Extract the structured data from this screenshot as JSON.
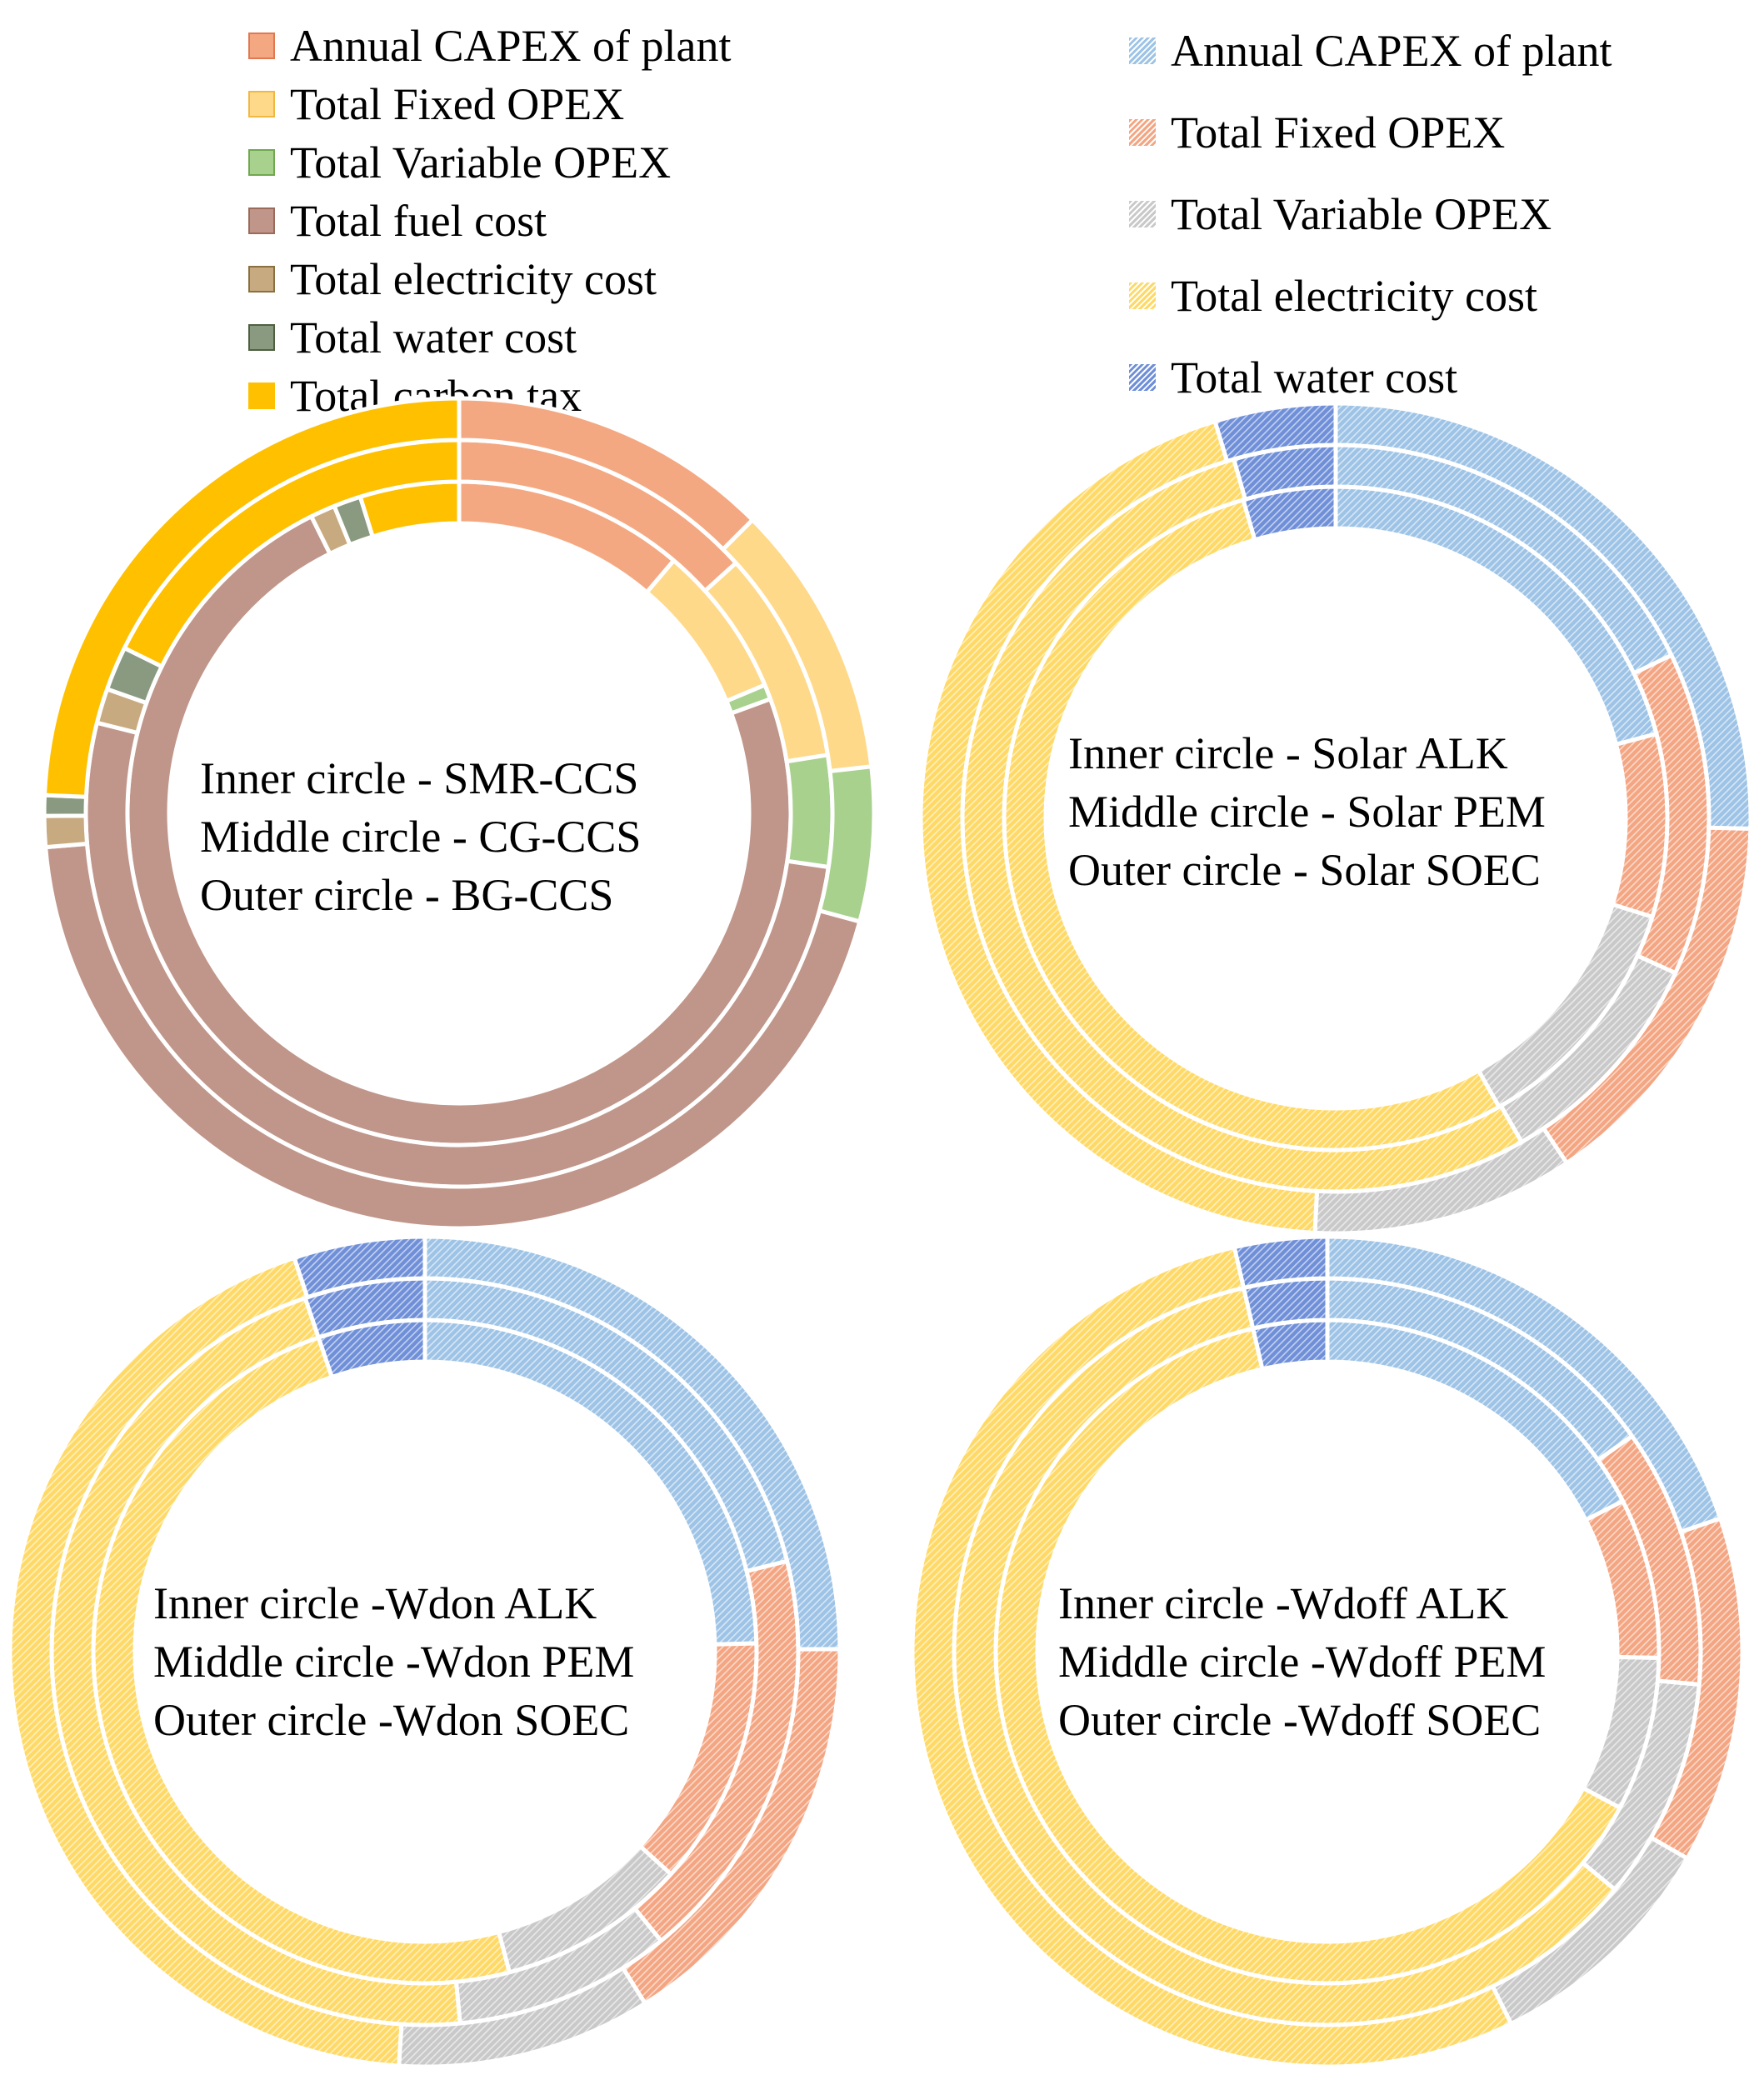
{
  "legend_left": [
    {
      "label": "Annual CAPEX of plant",
      "color": "#f4a882",
      "border": "#e07850"
    },
    {
      "label": "Total Fixed OPEX",
      "color": "#ffd98a",
      "border": "#f0b840"
    },
    {
      "label": "Total Variable OPEX",
      "color": "#a9d18e",
      "border": "#70a850"
    },
    {
      "label": "Total fuel cost",
      "color": "#c0958a",
      "border": "#9a6a5a"
    },
    {
      "label": "Total electricity cost",
      "color": "#c8aa80",
      "border": "#8a7040"
    },
    {
      "label": "Total water cost",
      "color": "#8a9a80",
      "border": "#4e6040"
    },
    {
      "label": "Total carbon tax",
      "color": "#ffc000",
      "border": "#ffc000"
    }
  ],
  "legend_right": [
    {
      "label": "Annual CAPEX of plant",
      "color": "#9dc3e6"
    },
    {
      "label": "Total Fixed OPEX",
      "color": "#f4a582"
    },
    {
      "label": "Total Variable OPEX",
      "color": "#c9c9c9"
    },
    {
      "label": "Total electricity cost",
      "color": "#ffd966"
    },
    {
      "label": "Total water cost",
      "color": "#6f8fd8"
    }
  ],
  "chart_data": [
    {
      "type": "pie",
      "variant": "multi-ring-donut",
      "title": "",
      "categories": [
        "Annual CAPEX of plant",
        "Total Fixed OPEX",
        "Total Variable OPEX",
        "Total fuel cost",
        "Total electricity cost",
        "Total water cost",
        "Total carbon tax"
      ],
      "colors": [
        "#f4a882",
        "#ffd98a",
        "#a9d18e",
        "#c0958a",
        "#c8aa80",
        "#8a9a80",
        "#ffc000"
      ],
      "hatched": false,
      "series": [
        {
          "name": "SMR-CCS",
          "values": [
            9.3,
            6.2,
            0.6,
            60.8,
            1.0,
            1.1,
            4.0
          ]
        },
        {
          "name": "CG-CCS",
          "values": [
            13.3,
            9.2,
            4.8,
            51.6,
            1.5,
            1.9,
            17.7
          ]
        },
        {
          "name": "BG-CCS",
          "values": [
            12.5,
            10.7,
            6.0,
            44.5,
            1.2,
            0.8,
            24.3
          ]
        }
      ],
      "annotations": [
        {
          "text": "Inner circle - SMR-CCS"
        },
        {
          "text": "Middle circle - CG-CCS"
        },
        {
          "text": "Outer circle - BG-CCS"
        }
      ]
    },
    {
      "type": "pie",
      "variant": "multi-ring-donut",
      "title": "",
      "categories": [
        "Annual CAPEX of plant",
        "Total Fixed OPEX",
        "Total Variable OPEX",
        "Total electricity cost",
        "Total water cost"
      ],
      "colors": [
        "#9dc3e6",
        "#f4a582",
        "#c9c9c9",
        "#ffd966",
        "#6f8fd8"
      ],
      "hatched": true,
      "series": [
        {
          "name": "Solar ALK",
          "values": [
            20.9,
            8.9,
            12.0,
            53.7,
            4.5
          ]
        },
        {
          "name": "Solar PEM",
          "values": [
            17.8,
            14.0,
            9.9,
            53.9,
            4.4
          ]
        },
        {
          "name": "Solar SOEC",
          "values": [
            25.4,
            15.2,
            10.2,
            44.5,
            4.7
          ]
        }
      ],
      "annotations": [
        {
          "text": "Inner circle - Solar ALK"
        },
        {
          "text": "Middle circle - Solar PEM"
        },
        {
          "text": "Outer circle - Solar SOEC"
        }
      ]
    },
    {
      "type": "pie",
      "variant": "multi-ring-donut",
      "title": "",
      "categories": [
        "Annual CAPEX of plant",
        "Total Fixed OPEX",
        "Total Variable OPEX",
        "Total electricity cost",
        "Total water cost"
      ],
      "colors": [
        "#9dc3e6",
        "#f4a582",
        "#c9c9c9",
        "#ffd966",
        "#6f8fd8"
      ],
      "hatched": true,
      "series": [
        {
          "name": "Wdon ALK",
          "values": [
            24.6,
            12.1,
            9.2,
            48.9,
            5.2
          ]
        },
        {
          "name": "Wdon PEM",
          "values": [
            21.1,
            18.0,
            9.4,
            46.3,
            5.2
          ]
        },
        {
          "name": "Wdon SOEC",
          "values": [
            24.9,
            16.2,
            9.9,
            43.9,
            5.1
          ]
        }
      ],
      "annotations": [
        {
          "text": "Inner circle -Wdon ALK"
        },
        {
          "text": "Middle circle -Wdon PEM"
        },
        {
          "text": "Outer circle -Wdon SOEC"
        }
      ]
    },
    {
      "type": "pie",
      "variant": "multi-ring-donut",
      "title": "",
      "categories": [
        "Annual CAPEX of plant",
        "Total Fixed OPEX",
        "Total Variable OPEX",
        "Total electricity cost",
        "Total water cost"
      ],
      "colors": [
        "#9dc3e6",
        "#f4a582",
        "#c9c9c9",
        "#ffd966",
        "#6f8fd8"
      ],
      "hatched": true,
      "series": [
        {
          "name": "Wdoff ALK",
          "values": [
            17.5,
            7.8,
            7.5,
            63.6,
            3.6
          ]
        },
        {
          "name": "Wdoff PEM",
          "values": [
            15.2,
            11.2,
            9.6,
            60.4,
            3.6
          ]
        },
        {
          "name": "Wdoff SOEC",
          "values": [
            19.8,
            13.5,
            9.4,
            53.7,
            3.6
          ]
        }
      ],
      "annotations": [
        {
          "text": "Inner circle -Wdoff ALK"
        },
        {
          "text": "Middle circle -Wdoff PEM"
        },
        {
          "text": "Outer circle -Wdoff SOEC"
        }
      ]
    }
  ]
}
